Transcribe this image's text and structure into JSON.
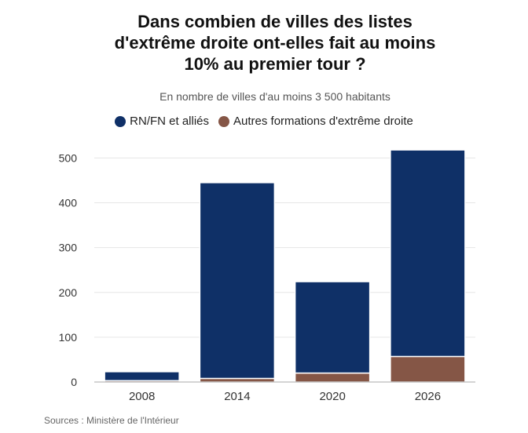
{
  "title_lines": [
    "Dans combien de villes des listes",
    "d'extrême droite ont-elles fait au moins",
    "10% au premier tour ?"
  ],
  "subtitle": "En nombre de villes d'au moins 3 500 habitants",
  "legend": [
    {
      "label": "RN/FN et alliés",
      "color": "#0f3067"
    },
    {
      "label": "Autres formations d'extrême droite",
      "color": "#855646"
    }
  ],
  "source": "Sources : Ministère de l'Intérieur",
  "chart_data": {
    "type": "bar",
    "stacked": true,
    "title": "Dans combien de villes des listes d'extrême droite ont-elles fait au moins 10% au premier tour ?",
    "subtitle": "En nombre de villes d'au moins 3 500 habitants",
    "categories": [
      "2008",
      "2014",
      "2020",
      "2026"
    ],
    "series": [
      {
        "name": "Autres formations d'extrême droite",
        "color": "#855646",
        "values": [
          3,
          8,
          20,
          57
        ]
      },
      {
        "name": "RN/FN et alliés",
        "color": "#0f3067",
        "values": [
          20,
          437,
          204,
          461
        ]
      }
    ],
    "xlabel": "",
    "ylabel": "",
    "ylim": [
      0,
      520
    ],
    "yticks": [
      0,
      100,
      200,
      300,
      400,
      500
    ],
    "grid": true,
    "legend_position": "top"
  }
}
